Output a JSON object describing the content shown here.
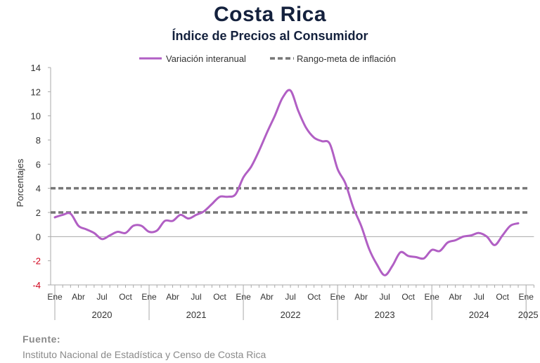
{
  "header": {
    "title": "Costa Rica",
    "subtitle": "Índice de Precios al Consumidor"
  },
  "source": {
    "label": "Fuente:",
    "text": "Instituto Nacional de Estadística y Censo de Costa Rica"
  },
  "colors": {
    "series": "#b15fc4",
    "target": "#777777",
    "negative_tick": "#d0021b",
    "axis": "#aaaaaa",
    "title": "#14213d"
  },
  "chart_data": {
    "type": "line",
    "ylabel": "Porcentajes",
    "ylim": [
      -4,
      14
    ],
    "yticks": [
      14,
      12,
      10,
      8,
      6,
      4,
      2,
      0,
      -2,
      -4
    ],
    "grid": false,
    "legend_position": "top-center",
    "x_start": "2020-01",
    "month_tick_labels": [
      "Ene",
      "Abr",
      "Jul",
      "Oct"
    ],
    "years": [
      "2020",
      "2021",
      "2022",
      "2023",
      "2024",
      "2025"
    ],
    "series": [
      {
        "name": "Variación interanual",
        "style": "solid",
        "values": [
          1.6,
          1.8,
          1.9,
          0.9,
          0.6,
          0.3,
          -0.2,
          0.1,
          0.4,
          0.3,
          0.9,
          0.9,
          0.4,
          0.5,
          1.3,
          1.3,
          1.8,
          1.5,
          1.8,
          2.1,
          2.7,
          3.3,
          3.3,
          3.5,
          4.9,
          5.8,
          7.1,
          8.6,
          10.0,
          11.5,
          12.1,
          10.4,
          9.0,
          8.2,
          7.9,
          7.7,
          5.6,
          4.4,
          2.4,
          0.9,
          -1.0,
          -2.3,
          -3.2,
          -2.4,
          -1.3,
          -1.6,
          -1.7,
          -1.8,
          -1.1,
          -1.2,
          -0.5,
          -0.3,
          0.0,
          0.1,
          0.3,
          0.0,
          -0.7,
          0.1,
          0.9,
          1.1
        ]
      },
      {
        "name": "Rango-meta de inflación",
        "style": "dashed",
        "upper": 4,
        "lower": 2
      }
    ]
  }
}
